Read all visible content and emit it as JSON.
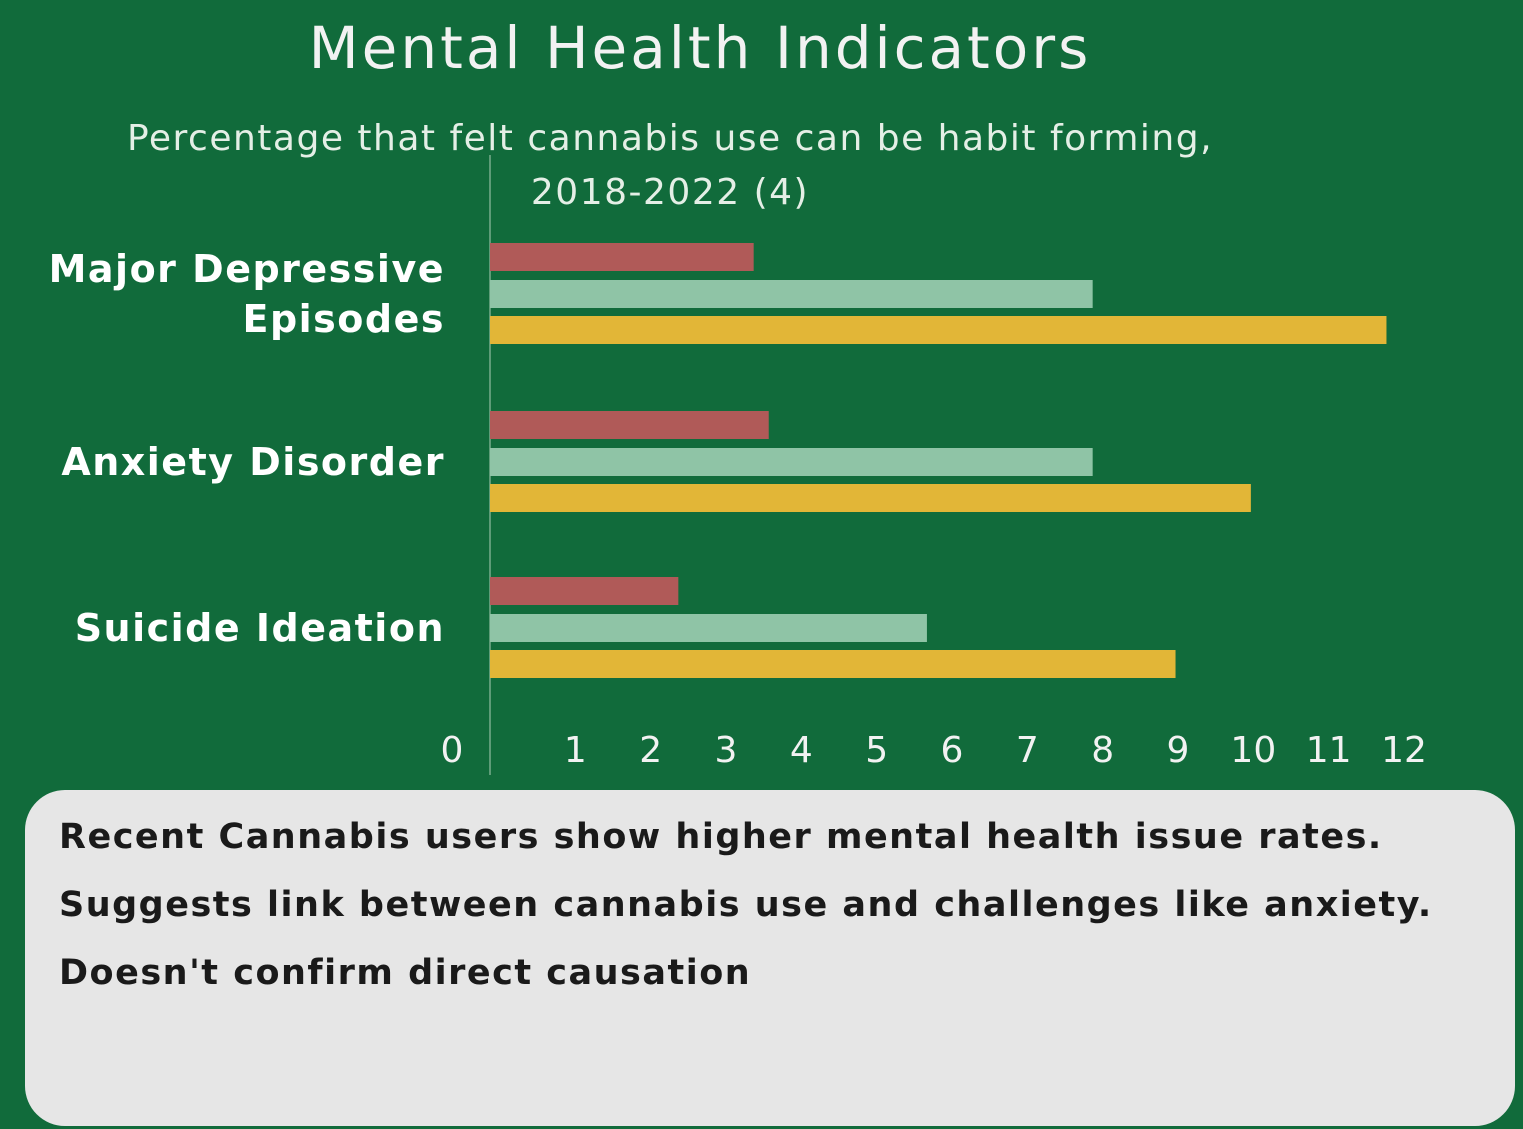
{
  "chart_data": {
    "type": "barh",
    "title": "Mental Health Indicators",
    "subtitle": "Percentage that felt cannabis use can be habit forming, 2018-2022 (4)",
    "categories": [
      "Major Depressive Episodes",
      "Anxiety Disorder",
      "Suicide Ideation"
    ],
    "series": [
      {
        "color": "#b05a58",
        "values": [
          3.5,
          3.7,
          2.5
        ]
      },
      {
        "color": "#8fc4a6",
        "values": [
          8,
          8,
          5.8
        ]
      },
      {
        "color": "#e2b637",
        "values": [
          11.9,
          10.1,
          9.1
        ]
      }
    ],
    "xlim": [
      0,
      12
    ],
    "xticks": [
      0,
      1,
      2,
      3,
      4,
      5,
      6,
      7,
      8,
      9,
      10,
      11,
      12
    ]
  },
  "notes": [
    "Recent Cannabis users show higher mental health issue rates.",
    "Suggests link between cannabis use and challenges like anxiety.",
    "Doesn't confirm direct causation"
  ]
}
